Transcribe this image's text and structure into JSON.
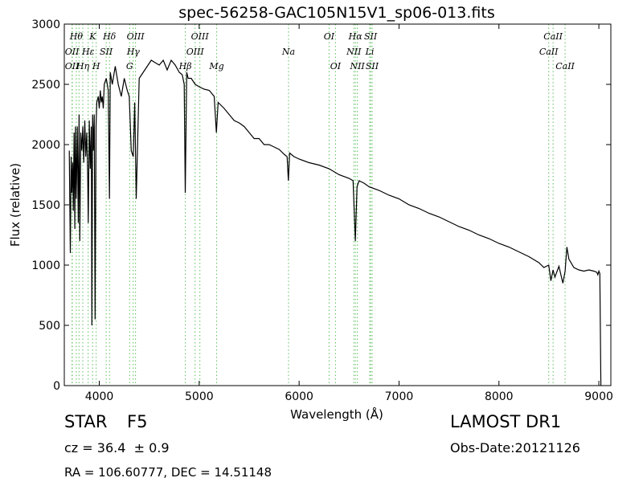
{
  "chart_data": {
    "type": "line",
    "title": "spec-56258-GAC105N15V1_sp06-013.fits",
    "xlabel": "Wavelength (Å)",
    "ylabel": "Flux (relative)",
    "xlim": [
      3650,
      9120
    ],
    "ylim": [
      0,
      3000
    ],
    "xticks": [
      4000,
      5000,
      6000,
      7000,
      8000,
      9000
    ],
    "yticks": [
      0,
      500,
      1000,
      1500,
      2000,
      2500,
      3000
    ],
    "grid": false,
    "line_color": "#000000",
    "marker_color": "#5cbf5c",
    "series": [
      {
        "x": [
          3700,
          3710,
          3718,
          3725,
          3734,
          3740,
          3748,
          3755,
          3762,
          3770,
          3780,
          3790,
          3798,
          3805,
          3815,
          3825,
          3835,
          3845,
          3855,
          3865,
          3875,
          3885,
          3890,
          3900,
          3910,
          3920,
          3926,
          3933,
          3940,
          3950,
          3958,
          3968,
          3975,
          3990,
          4000,
          4010,
          4020,
          4030,
          4040,
          4050,
          4070,
          4090,
          4102,
          4110,
          4130,
          4160,
          4190,
          4220,
          4250,
          4280,
          4300,
          4320,
          4340,
          4355,
          4370,
          4400,
          4440,
          4480,
          4520,
          4560,
          4600,
          4640,
          4680,
          4720,
          4760,
          4800,
          4830,
          4850,
          4861,
          4875,
          4890,
          4920,
          4960,
          5000,
          5050,
          5100,
          5150,
          5172,
          5190,
          5250,
          5300,
          5350,
          5400,
          5450,
          5500,
          5550,
          5600,
          5650,
          5700,
          5750,
          5800,
          5850,
          5880,
          5893,
          5905,
          5950,
          6000,
          6100,
          6200,
          6300,
          6400,
          6500,
          6540,
          6563,
          6580,
          6600,
          6650,
          6700,
          6800,
          6900,
          7000,
          7100,
          7200,
          7300,
          7400,
          7500,
          7600,
          7700,
          7800,
          7900,
          8000,
          8100,
          8200,
          8300,
          8400,
          8450,
          8498,
          8520,
          8542,
          8560,
          8600,
          8640,
          8662,
          8680,
          8700,
          8750,
          8800,
          8850,
          8900,
          8950,
          8980,
          8990,
          9000,
          9010,
          9020
        ],
        "y": [
          1950,
          1100,
          1900,
          1600,
          1850,
          1450,
          2100,
          1300,
          2150,
          1550,
          2150,
          1350,
          2250,
          1200,
          2100,
          1950,
          2150,
          1850,
          2200,
          1900,
          2100,
          1700,
          1350,
          2200,
          1800,
          2150,
          500,
          2250,
          1950,
          2250,
          550,
          2150,
          2350,
          2400,
          2300,
          2450,
          2350,
          2400,
          2300,
          2500,
          2550,
          2450,
          1550,
          2600,
          2500,
          2650,
          2500,
          2400,
          2550,
          2450,
          2400,
          1950,
          1900,
          2350,
          1550,
          2550,
          2600,
          2650,
          2700,
          2680,
          2660,
          2700,
          2620,
          2700,
          2660,
          2600,
          2580,
          2500,
          1600,
          2600,
          2550,
          2550,
          2500,
          2480,
          2460,
          2450,
          2400,
          2100,
          2350,
          2300,
          2250,
          2200,
          2180,
          2150,
          2100,
          2050,
          2050,
          2000,
          2000,
          1980,
          1960,
          1920,
          1900,
          1700,
          1930,
          1900,
          1880,
          1850,
          1830,
          1800,
          1750,
          1720,
          1700,
          1200,
          1650,
          1700,
          1680,
          1650,
          1620,
          1580,
          1550,
          1500,
          1470,
          1430,
          1400,
          1360,
          1320,
          1290,
          1250,
          1220,
          1180,
          1150,
          1110,
          1070,
          1020,
          980,
          1000,
          870,
          960,
          900,
          990,
          850,
          950,
          1150,
          1050,
          980,
          960,
          950,
          960,
          950,
          940,
          920,
          950,
          930,
          0
        ]
      }
    ],
    "line_markers": [
      {
        "x": 3727,
        "labels": [
          "OII",
          "OII"
        ],
        "rows": [
          1,
          2
        ]
      },
      {
        "x": 3730,
        "labels": [],
        "rows": []
      },
      {
        "x": 3770,
        "labels": [
          "Hθ"
        ],
        "rows": [
          0
        ]
      },
      {
        "x": 3797,
        "labels": [],
        "rows": []
      },
      {
        "x": 3835,
        "labels": [
          "Hη"
        ],
        "rows": [
          2
        ]
      },
      {
        "x": 3889,
        "labels": [
          "Hε"
        ],
        "rows": [
          1
        ]
      },
      {
        "x": 3934,
        "labels": [
          "K"
        ],
        "rows": [
          0
        ]
      },
      {
        "x": 3969,
        "labels": [
          "H"
        ],
        "rows": [
          2
        ]
      },
      {
        "x": 4069,
        "labels": [
          "SII"
        ],
        "rows": [
          1
        ]
      },
      {
        "x": 4102,
        "labels": [
          "Hδ"
        ],
        "rows": [
          0
        ]
      },
      {
        "x": 4304,
        "labels": [
          "G"
        ],
        "rows": [
          2
        ]
      },
      {
        "x": 4340,
        "labels": [
          "Hγ"
        ],
        "rows": [
          1
        ]
      },
      {
        "x": 4363,
        "labels": [
          "OIII"
        ],
        "rows": [
          0
        ]
      },
      {
        "x": 4861,
        "labels": [
          "Hβ"
        ],
        "rows": [
          2
        ]
      },
      {
        "x": 4959,
        "labels": [
          "OIII"
        ],
        "rows": [
          1
        ]
      },
      {
        "x": 5007,
        "labels": [
          "OIII"
        ],
        "rows": [
          0
        ]
      },
      {
        "x": 5175,
        "labels": [
          "Mg"
        ],
        "rows": [
          2
        ]
      },
      {
        "x": 5894,
        "labels": [
          "Na"
        ],
        "rows": [
          1
        ]
      },
      {
        "x": 6300,
        "labels": [
          "OI"
        ],
        "rows": [
          0
        ]
      },
      {
        "x": 6364,
        "labels": [
          "OI"
        ],
        "rows": [
          2
        ]
      },
      {
        "x": 6548,
        "labels": [
          "NII"
        ],
        "rows": [
          1
        ]
      },
      {
        "x": 6563,
        "labels": [
          "Hα"
        ],
        "rows": [
          0
        ]
      },
      {
        "x": 6583,
        "labels": [
          "NII"
        ],
        "rows": [
          2
        ]
      },
      {
        "x": 6707,
        "labels": [
          "Li"
        ],
        "rows": [
          1
        ]
      },
      {
        "x": 6716,
        "labels": [
          "SII"
        ],
        "rows": [
          0
        ]
      },
      {
        "x": 6731,
        "labels": [
          "SII"
        ],
        "rows": [
          2
        ]
      },
      {
        "x": 8498,
        "labels": [
          "CaII"
        ],
        "rows": [
          1
        ]
      },
      {
        "x": 8542,
        "labels": [
          "CaII"
        ],
        "rows": [
          0
        ]
      },
      {
        "x": 8662,
        "labels": [
          "CaII"
        ],
        "rows": [
          2
        ]
      }
    ]
  },
  "info": {
    "class_label": "STAR",
    "subclass_label": "F5",
    "cz_text": "cz = 36.4  ± 0.9",
    "radec_text": "RA = 106.60777, DEC = 14.51148",
    "survey_label": "LAMOST DR1",
    "obs_date_text": "Obs-Date:20121126"
  }
}
